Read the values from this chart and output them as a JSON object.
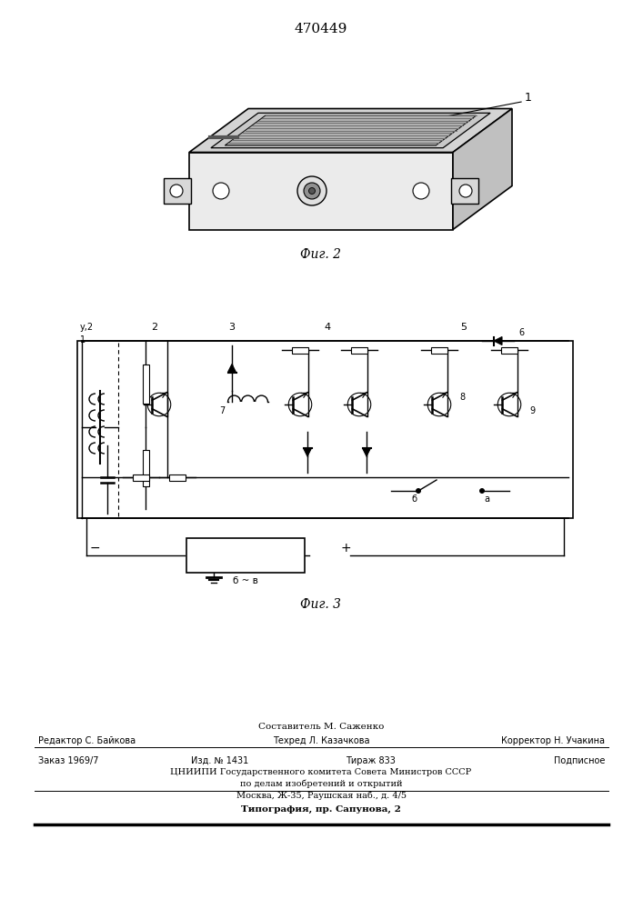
{
  "patent_number": "470449",
  "fig2_caption": "Фиг. 2",
  "fig3_caption": "Фиг. 3",
  "footer_line1": "Составитель М. Саженко",
  "footer_line2_left": "Редактор С. Байкова",
  "footer_line2_mid": "Техред Л. Казачкова",
  "footer_line2_right": "Корректор Н. Учакина",
  "footer_line3_1": "Заказ 1969/7",
  "footer_line3_2": "Изд. № 1431",
  "footer_line3_3": "Тираж 833",
  "footer_line3_4": "Подписное",
  "footer_line4": "ЦНИИПИ Государственного комитета Совета Министров СССР",
  "footer_line5": "по делам изобретений и открытий",
  "footer_line6": "Москва, Ж-35, Раушская наб., д. 4/5",
  "footer_line7": "Типография, пр. Сапунова, 2",
  "bg_color": "#ffffff",
  "text_color": "#000000"
}
